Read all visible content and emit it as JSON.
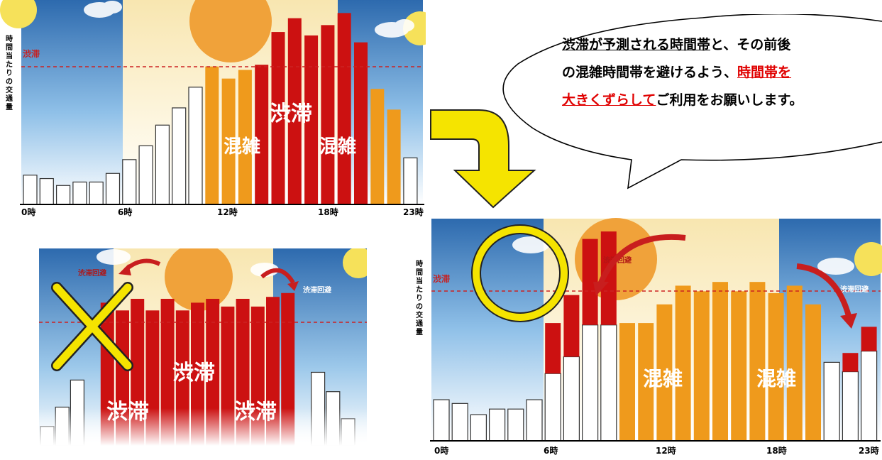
{
  "chart_data": [
    {
      "type": "bar",
      "ylabel": "時間当たりの交通量",
      "threshold_label": "渋滞",
      "x_tick_labels": [
        "0時",
        "6時",
        "12時",
        "18時",
        "23時"
      ],
      "categories": [
        0,
        1,
        2,
        3,
        4,
        5,
        6,
        7,
        8,
        9,
        10,
        11,
        12,
        13,
        14,
        15,
        16,
        17,
        18,
        19,
        20,
        21,
        22,
        23
      ],
      "values": [
        17,
        15,
        11,
        13,
        13,
        18,
        26,
        34,
        46,
        56,
        68,
        80,
        73,
        78,
        81,
        100,
        108,
        98,
        104,
        111,
        94,
        67,
        55,
        27
      ],
      "band": [
        "white",
        "white",
        "white",
        "white",
        "white",
        "white",
        "white",
        "white",
        "white",
        "white",
        "white",
        "orange",
        "orange",
        "orange",
        "red",
        "red",
        "red",
        "red",
        "red",
        "red",
        "red",
        "orange",
        "orange",
        "white"
      ],
      "threshold": 88,
      "ylim": [
        0,
        115
      ],
      "annotations": [
        "混雑",
        "渋滞",
        "混雑"
      ]
    },
    {
      "type": "bar",
      "threshold_label": "",
      "values": [
        10,
        20,
        34,
        0,
        74,
        70,
        76,
        70,
        76,
        70,
        74,
        76,
        72,
        76,
        72,
        77,
        79,
        0,
        38,
        28,
        14
      ],
      "band": [
        "white",
        "white",
        "white",
        "none",
        "red",
        "red",
        "red",
        "red",
        "red",
        "red",
        "red",
        "red",
        "red",
        "red",
        "red",
        "red",
        "red",
        "none",
        "white",
        "white",
        "white"
      ],
      "threshold": 65,
      "ylim": [
        0,
        100
      ],
      "annotations": [
        "渋滞回避",
        "渋滞回避",
        "渋滞",
        "渋滞",
        "渋滞"
      ]
    },
    {
      "type": "bar",
      "ylabel": "時間当たりの交通量",
      "threshold_label": "渋滞",
      "x_tick_labels": [
        "0時",
        "6時",
        "12時",
        "18時",
        "23時"
      ],
      "categories": [
        0,
        1,
        2,
        3,
        4,
        5,
        6,
        7,
        8,
        9,
        10,
        11,
        12,
        13,
        14,
        15,
        16,
        17,
        18,
        19,
        20,
        21,
        22,
        23
      ],
      "values": [
        22,
        20,
        14,
        17,
        17,
        22,
        36,
        45,
        62,
        62,
        63,
        63,
        73,
        83,
        80,
        85,
        80,
        85,
        79,
        83,
        73,
        42,
        37,
        48
      ],
      "shifted": [
        0,
        0,
        0,
        0,
        0,
        0,
        27,
        33,
        46,
        50,
        0,
        0,
        0,
        0,
        0,
        0,
        0,
        0,
        0,
        0,
        0,
        0,
        10,
        13
      ],
      "band": [
        "white",
        "white",
        "white",
        "white",
        "white",
        "white",
        "white",
        "white",
        "white",
        "white",
        "orange",
        "orange",
        "orange",
        "orange",
        "orange",
        "orange",
        "orange",
        "orange",
        "orange",
        "orange",
        "orange",
        "white",
        "white",
        "white"
      ],
      "threshold": 88,
      "ylim": [
        0,
        120
      ],
      "annotations": [
        "渋滞回避",
        "渋滞回避",
        "混雑",
        "混雑"
      ]
    }
  ],
  "bubble": {
    "line1_a": "渋滞が予測される時間帯",
    "line1_b": "と、その前後",
    "line2_a": "の混雑時間帯を避けるよう、",
    "line2_b": "時間帯を",
    "line3_a": "大きくずらして",
    "line3_b": "ご利用をお願いします。"
  },
  "colors": {
    "red": "#cc1111",
    "orange": "#ef9a1c",
    "white": "#ffffff",
    "sky_blue": "#2f6fb6",
    "dash": "#cc2222",
    "yellow": "#f5e400"
  },
  "icons": [
    "sun-icon",
    "cloud-icon",
    "curved-arrow-icon",
    "cross-mark-icon",
    "circle-mark-icon",
    "down-arrow-icon"
  ]
}
